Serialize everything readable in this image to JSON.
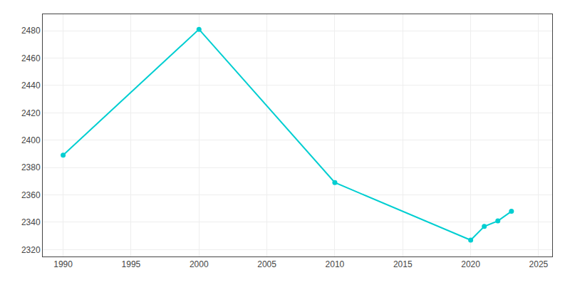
{
  "chart_data": {
    "type": "line",
    "x": [
      1990,
      2000,
      2010,
      2020,
      2021,
      2022,
      2023
    ],
    "values": [
      2389,
      2481,
      2369,
      2327,
      2337,
      2341,
      2348
    ],
    "color": "#00CED1",
    "marker": "circle",
    "xlim": [
      1988.5,
      2026
    ],
    "ylim": [
      2315,
      2492
    ],
    "xticks": [
      1990,
      1995,
      2000,
      2005,
      2010,
      2015,
      2020,
      2025
    ],
    "yticks": [
      2320,
      2340,
      2360,
      2380,
      2400,
      2420,
      2440,
      2460,
      2480
    ],
    "grid": true
  }
}
